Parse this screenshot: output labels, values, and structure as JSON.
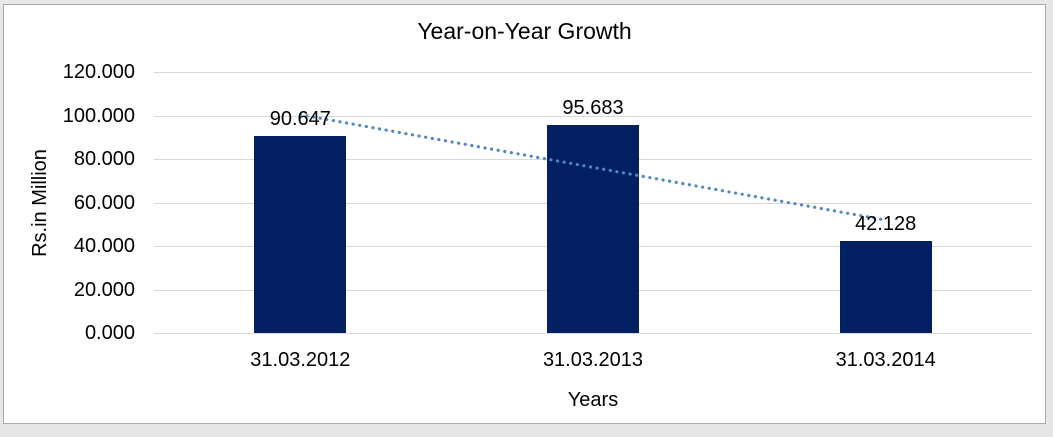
{
  "frame": {
    "background_color": "#e7e7e7",
    "panel_background": "#ffffff",
    "panel_border_color": "#ababab"
  },
  "chart_data": {
    "type": "bar",
    "title": "Year-on-Year Growth",
    "categories": [
      "31.03.2012",
      "31.03.2013",
      "31.03.2014"
    ],
    "values": [
      90.647,
      95.683,
      42.128
    ],
    "data_labels": [
      "90.647",
      "95.683",
      "42.128"
    ],
    "xlabel": "Years",
    "ylabel": "Rs.in Million",
    "ylim": [
      0,
      120
    ],
    "y_ticks": [
      {
        "value": 0,
        "label": "0.000"
      },
      {
        "value": 20,
        "label": "20.000"
      },
      {
        "value": 40,
        "label": "40.000"
      },
      {
        "value": 60,
        "label": "60.000"
      },
      {
        "value": 80,
        "label": "80.000"
      },
      {
        "value": 100,
        "label": "100.000"
      },
      {
        "value": 120,
        "label": "120.000"
      }
    ],
    "grid": true,
    "legend": false,
    "bar_color": "#022061",
    "gridline_color": "#d9d9d9",
    "text_color": "#000000",
    "trendline": {
      "type": "linear",
      "style": "dotted",
      "color": "#4e86c8",
      "fit_values_at_first_and_last_category": [
        100.4,
        51.9
      ]
    }
  }
}
